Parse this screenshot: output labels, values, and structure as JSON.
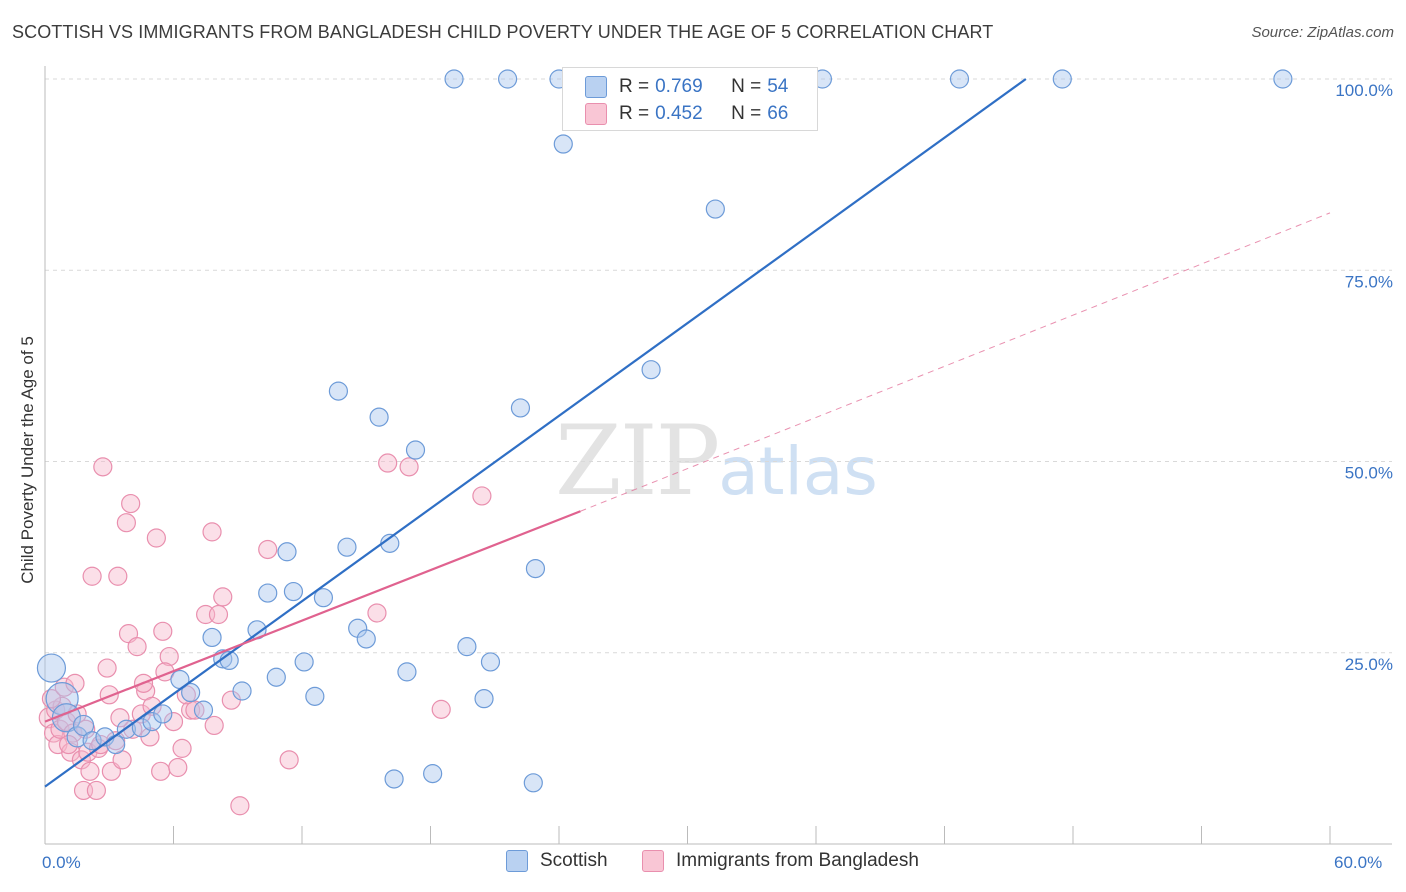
{
  "header": {
    "title": "SCOTTISH VS IMMIGRANTS FROM BANGLADESH CHILD POVERTY UNDER THE AGE OF 5 CORRELATION CHART",
    "source": "Source: ZipAtlas.com"
  },
  "watermark": {
    "zip": "ZIP",
    "atlas": "atlas"
  },
  "legend_top": {
    "rows": [
      {
        "r_label": "R = ",
        "r_value": "0.769",
        "n_label": "N = ",
        "n_value": "54"
      },
      {
        "r_label": "R = ",
        "r_value": "0.452",
        "n_label": "N = ",
        "n_value": "66"
      }
    ]
  },
  "colors": {
    "blue_fill": "#a9c6ee",
    "blue_stroke": "#6d9bd8",
    "blue_line": "#2f6fc5",
    "pink_fill": "#f6b8cb",
    "pink_stroke": "#e98fae",
    "pink_line": "#e0628f",
    "tick_text": "#3a74c4",
    "grid": "#d9d9d9"
  },
  "chart_data": {
    "type": "scatter",
    "title": "SCOTTISH VS IMMIGRANTS FROM BANGLADESH CHILD POVERTY UNDER THE AGE OF 5 CORRELATION CHART",
    "ylabel": "Child Poverty Under the Age of 5",
    "xlabel": "",
    "xlim": [
      0,
      60
    ],
    "ylim": [
      0,
      100
    ],
    "x_tick_labels": [
      "0.0%",
      "60.0%"
    ],
    "y_tick_labels": [
      "25.0%",
      "50.0%",
      "75.0%",
      "100.0%"
    ],
    "y_ticks": [
      25,
      50,
      75,
      100
    ],
    "grid": true,
    "legend_position": "bottom",
    "series": [
      {
        "name": "Scottish",
        "r": 0.769,
        "n": 54,
        "trend": {
          "x": [
            0,
            45.8
          ],
          "y": [
            7.5,
            100
          ]
        },
        "points": [
          [
            0.3,
            23.0,
            14
          ],
          [
            0.8,
            19.0,
            16
          ],
          [
            1.0,
            16.5,
            14
          ],
          [
            1.5,
            14.0,
            10
          ],
          [
            1.8,
            15.5,
            10
          ],
          [
            2.2,
            13.5,
            9
          ],
          [
            2.8,
            14.0,
            9
          ],
          [
            3.3,
            13.0,
            9
          ],
          [
            3.8,
            15.0,
            9
          ],
          [
            4.5,
            15.2,
            9
          ],
          [
            5.0,
            16.0,
            9
          ],
          [
            5.5,
            17.0,
            9
          ],
          [
            6.3,
            21.5,
            9
          ],
          [
            6.8,
            19.8,
            9
          ],
          [
            7.4,
            17.5,
            9
          ],
          [
            7.8,
            27.0,
            9
          ],
          [
            8.3,
            24.2,
            9
          ],
          [
            8.6,
            24.0,
            9
          ],
          [
            9.2,
            20.0,
            9
          ],
          [
            9.9,
            28.0,
            9
          ],
          [
            10.4,
            32.8,
            9
          ],
          [
            10.8,
            21.8,
            9
          ],
          [
            11.3,
            38.2,
            9
          ],
          [
            11.6,
            33.0,
            9
          ],
          [
            12.1,
            23.8,
            9
          ],
          [
            12.6,
            19.3,
            9
          ],
          [
            13.0,
            32.2,
            9
          ],
          [
            13.7,
            59.2,
            9
          ],
          [
            14.1,
            38.8,
            9
          ],
          [
            14.6,
            28.2,
            9
          ],
          [
            15.0,
            26.8,
            9
          ],
          [
            15.6,
            55.8,
            9
          ],
          [
            16.1,
            39.3,
            9
          ],
          [
            16.3,
            8.5,
            9
          ],
          [
            16.9,
            22.5,
            9
          ],
          [
            17.3,
            51.5,
            9
          ],
          [
            18.1,
            9.2,
            9
          ],
          [
            19.1,
            100,
            9
          ],
          [
            19.7,
            25.8,
            9
          ],
          [
            20.5,
            19.0,
            9
          ],
          [
            20.8,
            23.8,
            9
          ],
          [
            21.6,
            100,
            9
          ],
          [
            22.2,
            57.0,
            9
          ],
          [
            22.8,
            8.0,
            9
          ],
          [
            22.9,
            36.0,
            9
          ],
          [
            24.0,
            100,
            9
          ],
          [
            24.2,
            91.5,
            9
          ],
          [
            26.3,
            100,
            9
          ],
          [
            28.3,
            62.0,
            9
          ],
          [
            31.3,
            83.0,
            9
          ],
          [
            36.3,
            100,
            9
          ],
          [
            42.7,
            100,
            9
          ],
          [
            47.5,
            100,
            9
          ],
          [
            57.8,
            100,
            9
          ]
        ]
      },
      {
        "name": "Immigrants from Bangladesh",
        "r": 0.452,
        "n": 66,
        "trend": {
          "x": [
            0,
            25.0
          ],
          "y": [
            16.0,
            43.5
          ]
        },
        "trend_extension": {
          "x": [
            25.0,
            60.0
          ],
          "y": [
            43.5,
            82.5
          ]
        },
        "points": [
          [
            0.2,
            16.5,
            10
          ],
          [
            0.4,
            14.5,
            9
          ],
          [
            0.5,
            17.5,
            9
          ],
          [
            0.6,
            13.0,
            9
          ],
          [
            0.7,
            15.0,
            9
          ],
          [
            0.8,
            18.0,
            9
          ],
          [
            1.0,
            16.0,
            9
          ],
          [
            1.2,
            12.0,
            9
          ],
          [
            1.3,
            14.5,
            9
          ],
          [
            1.5,
            17.0,
            9
          ],
          [
            1.7,
            11.0,
            9
          ],
          [
            1.8,
            7.0,
            9
          ],
          [
            2.0,
            12.0,
            9
          ],
          [
            2.2,
            35.0,
            9
          ],
          [
            2.4,
            7.0,
            9
          ],
          [
            2.5,
            12.5,
            9
          ],
          [
            2.7,
            49.3,
            9
          ],
          [
            2.9,
            23.0,
            9
          ],
          [
            3.0,
            19.5,
            9
          ],
          [
            3.1,
            9.5,
            9
          ],
          [
            3.3,
            13.5,
            9
          ],
          [
            3.4,
            35.0,
            9
          ],
          [
            3.6,
            11.0,
            9
          ],
          [
            3.8,
            42.0,
            9
          ],
          [
            3.9,
            27.5,
            9
          ],
          [
            4.0,
            44.5,
            9
          ],
          [
            4.1,
            15.0,
            9
          ],
          [
            4.3,
            25.8,
            9
          ],
          [
            4.5,
            17.0,
            9
          ],
          [
            4.7,
            20.0,
            9
          ],
          [
            4.9,
            14.0,
            9
          ],
          [
            5.0,
            18.0,
            9
          ],
          [
            5.2,
            40.0,
            9
          ],
          [
            5.4,
            9.5,
            9
          ],
          [
            5.5,
            27.8,
            9
          ],
          [
            5.8,
            24.5,
            9
          ],
          [
            6.0,
            16.0,
            9
          ],
          [
            6.2,
            10.0,
            9
          ],
          [
            6.4,
            12.5,
            9
          ],
          [
            6.8,
            17.5,
            9
          ],
          [
            7.0,
            17.5,
            9
          ],
          [
            7.5,
            30.0,
            9
          ],
          [
            7.8,
            40.8,
            9
          ],
          [
            7.9,
            15.5,
            9
          ],
          [
            8.1,
            30.0,
            9
          ],
          [
            8.3,
            32.3,
            9
          ],
          [
            8.7,
            18.8,
            9
          ],
          [
            9.1,
            5.0,
            9
          ],
          [
            10.4,
            38.5,
            9
          ],
          [
            11.4,
            11.0,
            9
          ],
          [
            15.5,
            30.2,
            9
          ],
          [
            16.0,
            49.8,
            9
          ],
          [
            17.0,
            49.3,
            9
          ],
          [
            18.5,
            17.6,
            9
          ],
          [
            20.4,
            45.5,
            9
          ],
          [
            0.3,
            19.0,
            9
          ],
          [
            0.9,
            20.5,
            9
          ],
          [
            1.1,
            13.0,
            9
          ],
          [
            1.4,
            21.0,
            9
          ],
          [
            1.9,
            15.0,
            9
          ],
          [
            2.1,
            9.5,
            9
          ],
          [
            2.6,
            13.0,
            9
          ],
          [
            3.5,
            16.5,
            9
          ],
          [
            4.6,
            21.0,
            9
          ],
          [
            5.6,
            22.5,
            9
          ],
          [
            6.6,
            19.5,
            9
          ]
        ]
      }
    ]
  }
}
